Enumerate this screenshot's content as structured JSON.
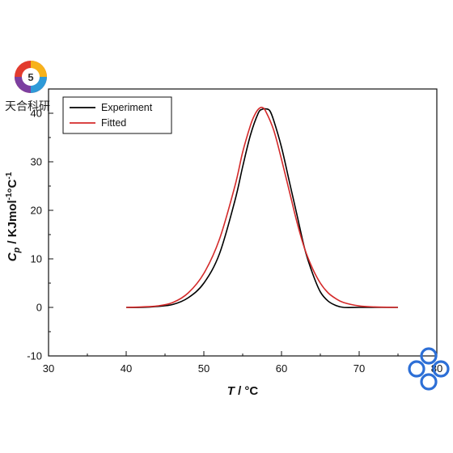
{
  "watermark": {
    "logo_text": "天合科研",
    "badge_text": "5"
  },
  "chart_data": {
    "type": "line",
    "xlabel_symbol": "T",
    "xlabel_rest": " / °C",
    "ylabel_symbol": "C",
    "ylabel_sub": "p",
    "ylabel_rest": " / KJmol",
    "ylabel_exp": "-1",
    "ylabel_unit2": "°C",
    "xlim": [
      30,
      80
    ],
    "ylim": [
      -10,
      45
    ],
    "xticks": [
      "30",
      "40",
      "50",
      "60",
      "70",
      "80"
    ],
    "yticks": [
      "-10",
      "0",
      "10",
      "20",
      "30",
      "40"
    ],
    "xtick_values": [
      30,
      40,
      50,
      60,
      70,
      80
    ],
    "ytick_values": [
      -10,
      0,
      10,
      20,
      30,
      40
    ],
    "legend_position": "top-left",
    "series": [
      {
        "name": "Experiment",
        "color": "#000000",
        "x": [
          40,
          42,
          44,
          46,
          48,
          50,
          52,
          54,
          55,
          56,
          57,
          57.5,
          58,
          58.5,
          59,
          60,
          61,
          62,
          63,
          64,
          65,
          66,
          67,
          68,
          70,
          72,
          75
        ],
        "y": [
          0,
          0,
          0.2,
          0.6,
          2.0,
          5.0,
          11.0,
          22.0,
          29.0,
          35.5,
          40.0,
          40.8,
          40.9,
          40.5,
          38.5,
          33.0,
          26.0,
          19.0,
          12.0,
          7.0,
          3.2,
          1.3,
          0.4,
          0,
          0,
          0,
          0
        ]
      },
      {
        "name": "Fitted",
        "color": "#d42a2a",
        "x": [
          40,
          42,
          44,
          46,
          48,
          50,
          52,
          54,
          55,
          56,
          56.5,
          57,
          57.5,
          58,
          59,
          60,
          61,
          62,
          63,
          64,
          65,
          66,
          67,
          68,
          70,
          72,
          75
        ],
        "y": [
          0,
          0.1,
          0.3,
          1.0,
          3.0,
          7.0,
          14.0,
          25.0,
          32.0,
          37.5,
          39.5,
          40.8,
          41.2,
          40.3,
          36.5,
          30.5,
          24.0,
          17.5,
          12.0,
          8.0,
          5.0,
          3.0,
          1.8,
          1.0,
          0.3,
          0.1,
          0
        ]
      }
    ]
  }
}
